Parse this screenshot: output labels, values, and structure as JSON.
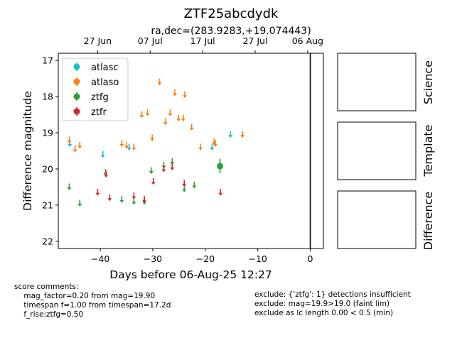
{
  "chart_data": {
    "type": "scatter",
    "title": "ZTF25abcdydk",
    "subtitle": "ra,dec=(283.9283,+19.074443)",
    "xlabel": "Days before 06-Aug-25 12:27",
    "ylabel": "Difference magnitude",
    "xlim": [
      -48,
      2.5
    ],
    "ylim": [
      22.2,
      16.8
    ],
    "y_inverted": true,
    "x_ticks": [
      -40,
      -30,
      -20,
      -10,
      0
    ],
    "x_tick_labels": [
      "−40",
      "−30",
      "−20",
      "−10",
      "0"
    ],
    "y_ticks": [
      17,
      18,
      19,
      20,
      21,
      22
    ],
    "top_axis_ticks": [
      {
        "x": -40.5,
        "label": "27 Jun"
      },
      {
        "x": -30.5,
        "label": "07 Jul"
      },
      {
        "x": -20.5,
        "label": "17 Jul"
      },
      {
        "x": -10.5,
        "label": "27 Jul"
      },
      {
        "x": -0.5,
        "label": "06 Aug"
      }
    ],
    "vertical_line_x": 0,
    "legend_position": "top-left",
    "series": [
      {
        "name": "atlasc",
        "color": "#17becf",
        "marker": "upper-limit",
        "points": [
          [
            -45.8,
            19.3
          ],
          [
            -39.5,
            19.6
          ],
          [
            -34.5,
            19.4
          ],
          [
            -18.7,
            19.4
          ],
          [
            -15.2,
            19.05
          ]
        ]
      },
      {
        "name": "atlaso",
        "color": "#ff7f0e",
        "marker": "upper-limit",
        "points": [
          [
            -45.9,
            19.2
          ],
          [
            -44.8,
            19.45
          ],
          [
            -43.9,
            19.35
          ],
          [
            -35.9,
            19.3
          ],
          [
            -35,
            19.35
          ],
          [
            -33.6,
            19.4
          ],
          [
            -32.1,
            18.5
          ],
          [
            -31,
            18.45
          ],
          [
            -30.1,
            19.15
          ],
          [
            -28.7,
            17.6
          ],
          [
            -27.6,
            18.7
          ],
          [
            -26.7,
            18.45
          ],
          [
            -25.8,
            17.9
          ],
          [
            -25.1,
            18.6
          ],
          [
            -24.2,
            18.6
          ],
          [
            -23.9,
            17.95
          ],
          [
            -22.6,
            18.85
          ],
          [
            -20.9,
            19.4
          ],
          [
            -18.3,
            19.25
          ],
          [
            -18.1,
            19.3
          ],
          [
            -12.9,
            19.05
          ]
        ]
      },
      {
        "name": "ztfg",
        "color": "#2ca02c",
        "marker": "upper-limit",
        "points": [
          [
            -45.9,
            20.5
          ],
          [
            -43.9,
            20.95
          ],
          [
            -39,
            20.1
          ],
          [
            -35.9,
            20.85
          ],
          [
            -33.6,
            20.9
          ],
          [
            -31.6,
            20.9
          ],
          [
            -30.3,
            20.05
          ],
          [
            -27.9,
            19.9
          ],
          [
            -26.3,
            19.8
          ],
          [
            -24,
            20.55
          ],
          [
            -22.1,
            20.45
          ]
        ]
      },
      {
        "name": "ztfg",
        "color": "#2ca02c",
        "marker": "detection",
        "show_in_legend": false,
        "points": [
          [
            -17.2,
            19.92,
            0.2
          ]
        ]
      },
      {
        "name": "ztfr",
        "color": "#d62728",
        "marker": "upper-limit",
        "points": [
          [
            -40.5,
            20.65
          ],
          [
            -38.9,
            20.15
          ],
          [
            -38.2,
            20.8
          ],
          [
            -33.6,
            20.75
          ],
          [
            -31.6,
            20.85
          ],
          [
            -29.9,
            20.35
          ],
          [
            -27.9,
            20.0
          ],
          [
            -26.3,
            19.95
          ],
          [
            -24,
            20.4
          ],
          [
            -17.1,
            20.65
          ]
        ]
      }
    ],
    "legend": [
      {
        "name": "atlasc",
        "color": "#17becf"
      },
      {
        "name": "atlaso",
        "color": "#ff7f0e"
      },
      {
        "name": "ztfg",
        "color": "#2ca02c"
      },
      {
        "name": "ztfr",
        "color": "#d62728"
      }
    ]
  },
  "stamps": {
    "science_label": "Science",
    "template_label": "Template",
    "difference_label": "Difference"
  },
  "comments": {
    "left": "score comments:\n    mag_factor=0.20 from mag=19.90\n    timespan f=1.00 from timespan=17.2d\n    f_rise:ztfg=0.50",
    "right": "exclude: {'ztfg': 1} detections insufficient\nexclude: mag=19.9>19.0 (faint lim)\nexclude as lc length 0.00 < 0.5 (min)"
  }
}
